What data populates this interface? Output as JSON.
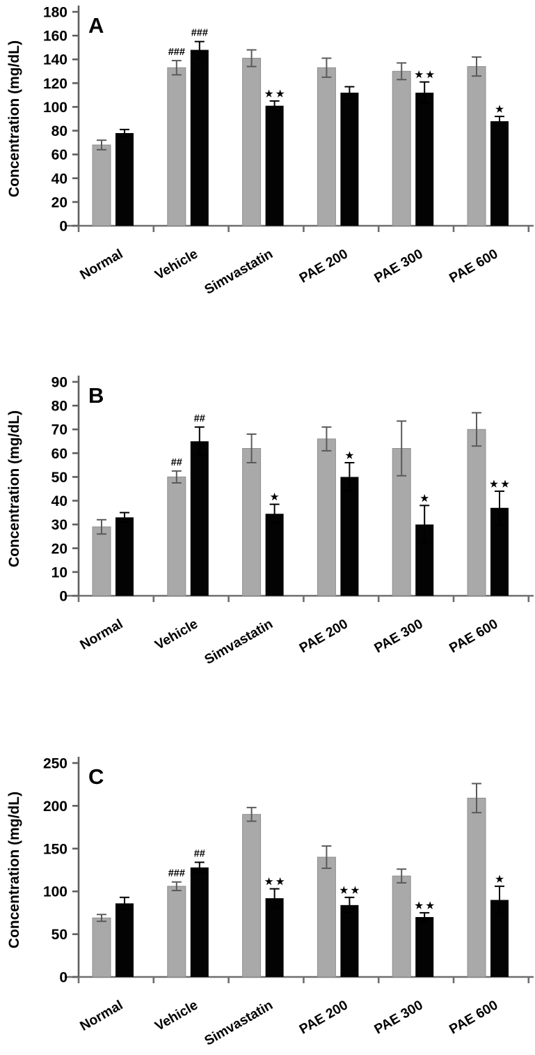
{
  "figure": {
    "description": "Three-panel bar chart figure of concentrations (mg/dL) across treatment groups",
    "panels": [
      "A",
      "B",
      "C"
    ]
  },
  "chart_data": [
    {
      "type": "bar",
      "panel_label": "A",
      "title": "",
      "xlabel": "",
      "ylabel": "Concentration (mg/dL)",
      "ylim": [
        0,
        180
      ],
      "ytick_step": 20,
      "grid": false,
      "legend": "none",
      "categories": [
        "Normal",
        "Vehicle",
        "Simvastatin",
        "PAE 200",
        "PAE 300",
        "PAE 600"
      ],
      "series": [
        {
          "name": "gray",
          "color": "#a9a9a9",
          "values": [
            68,
            133,
            141,
            133,
            130,
            134
          ],
          "errors": [
            4,
            6,
            7,
            8,
            7,
            8
          ],
          "annotations": [
            "",
            "###",
            "",
            "",
            "",
            ""
          ]
        },
        {
          "name": "black",
          "color": "#030303",
          "values": [
            78,
            148,
            101,
            112,
            112,
            88
          ],
          "errors": [
            3,
            7,
            4,
            5,
            9,
            4
          ],
          "annotations": [
            "",
            "###",
            "**",
            "",
            "**",
            "*"
          ]
        }
      ]
    },
    {
      "type": "bar",
      "panel_label": "B",
      "title": "",
      "xlabel": "",
      "ylabel": "Concentration (mg/dL)",
      "ylim": [
        0,
        90
      ],
      "ytick_step": 10,
      "grid": false,
      "legend": "none",
      "categories": [
        "Normal",
        "Vehicle",
        "Simvastatin",
        "PAE 200",
        "PAE 300",
        "PAE 600"
      ],
      "series": [
        {
          "name": "gray",
          "color": "#a9a9a9",
          "values": [
            29,
            50,
            62,
            66,
            62,
            70
          ],
          "errors": [
            3,
            2.5,
            6,
            5,
            11.5,
            7
          ],
          "annotations": [
            "",
            "##",
            "",
            "",
            "",
            ""
          ]
        },
        {
          "name": "black",
          "color": "#030303",
          "values": [
            33,
            65,
            34.5,
            50,
            30,
            37
          ],
          "errors": [
            2,
            6,
            4,
            6,
            8,
            7
          ],
          "annotations": [
            "",
            "##",
            "*",
            "*",
            "*",
            "**"
          ]
        }
      ]
    },
    {
      "type": "bar",
      "panel_label": "C",
      "title": "",
      "xlabel": "",
      "ylabel": "Concentration (mg/dL)",
      "ylim": [
        0,
        250
      ],
      "ytick_step": 50,
      "grid": false,
      "legend": "none",
      "categories": [
        "Normal",
        "Vehicle",
        "Simvastatin",
        "PAE 200",
        "PAE 300",
        "PAE 600"
      ],
      "series": [
        {
          "name": "gray",
          "color": "#a9a9a9",
          "values": [
            69,
            106,
            190,
            140,
            118,
            209
          ],
          "errors": [
            4,
            5,
            8,
            13,
            8,
            17
          ],
          "annotations": [
            "",
            "###",
            "",
            "",
            "",
            ""
          ]
        },
        {
          "name": "black",
          "color": "#030303",
          "values": [
            86,
            128,
            92,
            84,
            70,
            90
          ],
          "errors": [
            7,
            6,
            11,
            9,
            5,
            16
          ],
          "annotations": [
            "",
            "##",
            "**",
            "**",
            "**",
            "*"
          ]
        }
      ]
    }
  ],
  "style_tokens": {
    "bar_gray": "#a9a9a9",
    "bar_black": "#030303",
    "axis_color": "#6e6e6e",
    "error_bar_gray_series": "#5a5a5a",
    "error_bar_black_series": "#000000",
    "text_color": "#000000",
    "star_glyph": "★"
  }
}
